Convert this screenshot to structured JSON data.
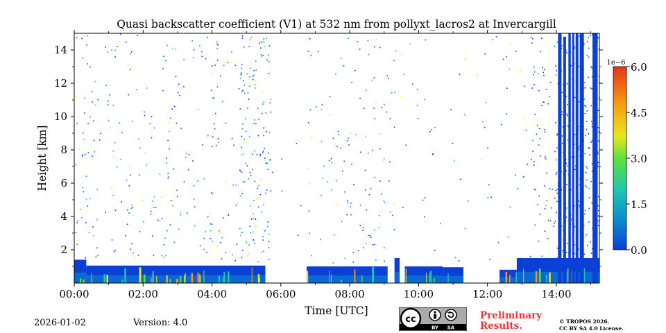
{
  "chart_data": {
    "type": "heatmap",
    "title": "Quasi backscatter coefficient (V1) at 532 nm from pollyxt_lacros2 at Invercargill",
    "xlabel": "Time [UTC]",
    "ylabel": "Height [km]",
    "x_tick_labels": [
      "00:00",
      "02:00",
      "04:00",
      "06:00",
      "08:00",
      "10:00",
      "12:00",
      "14:00"
    ],
    "x_ticks_hours": [
      0,
      2,
      4,
      6,
      8,
      10,
      12,
      14
    ],
    "xlim_hours": [
      0,
      15.25
    ],
    "y_tick_labels": [
      "2",
      "4",
      "6",
      "8",
      "10",
      "12",
      "14"
    ],
    "y_ticks": [
      2,
      4,
      6,
      8,
      10,
      12,
      14
    ],
    "ylim_km": [
      0,
      15
    ],
    "colorbar": {
      "min": 0,
      "max": 6.0,
      "scale_label": "1e−6",
      "tick_values": [
        0,
        1.5,
        3,
        4.5,
        6
      ],
      "tick_labels": [
        "0.0",
        "1.5",
        "3.0",
        "4.5",
        "6.0"
      ],
      "colormap": [
        "#0b3fd6",
        "#0a8fd0",
        "#20c8b0",
        "#5fe03c",
        "#e8e81c",
        "#f59a12",
        "#e8341a"
      ]
    },
    "boundary_layer": [
      {
        "start_h": 0.0,
        "end_h": 0.35,
        "top_km": 1.4
      },
      {
        "start_h": 0.35,
        "end_h": 5.55,
        "top_km": 1.05
      },
      {
        "start_h": 6.75,
        "end_h": 9.1,
        "top_km": 1.0
      },
      {
        "start_h": 9.3,
        "end_h": 9.45,
        "top_km": 1.5
      },
      {
        "start_h": 9.6,
        "end_h": 10.7,
        "top_km": 1.0
      },
      {
        "start_h": 10.7,
        "end_h": 11.3,
        "top_km": 0.95
      },
      {
        "start_h": 12.35,
        "end_h": 12.85,
        "top_km": 0.8
      },
      {
        "start_h": 12.85,
        "end_h": 15.25,
        "top_km": 1.5
      }
    ],
    "no_data_gaps_hours": [
      [
        5.55,
        6.75
      ],
      [
        11.3,
        12.35
      ]
    ],
    "high_signal_columns": [
      {
        "start_h": 14.05,
        "end_h": 14.15,
        "top_km": 15
      },
      {
        "start_h": 14.2,
        "end_h": 14.28,
        "top_km": 14.8
      },
      {
        "start_h": 14.35,
        "end_h": 14.42,
        "top_km": 15
      },
      {
        "start_h": 14.46,
        "end_h": 14.52,
        "top_km": 15
      },
      {
        "start_h": 14.56,
        "end_h": 14.64,
        "top_km": 15
      },
      {
        "start_h": 14.68,
        "end_h": 14.8,
        "top_km": 15
      },
      {
        "start_h": 15.05,
        "end_h": 15.2,
        "top_km": 15
      }
    ]
  },
  "footer": {
    "date": "2026-01-02",
    "version": "Version: 4.0",
    "license_badge": [
      "BY",
      "SA"
    ],
    "preliminary": "Preliminary",
    "results": "Results.",
    "copyright": "© TROPOS 2026.",
    "license_text": "CC BY SA 4.0 License."
  },
  "icons": {
    "license": "cc-license-icon",
    "person": "person-icon",
    "share_alike": "share-alike-icon"
  }
}
